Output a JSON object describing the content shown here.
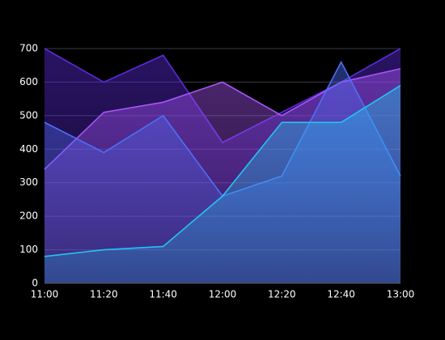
{
  "chart_data": {
    "type": "area",
    "categories": [
      "11:00",
      "11:20",
      "11:40",
      "12:00",
      "12:20",
      "12:40",
      "13:00"
    ],
    "series": [
      {
        "color": "#5b2bdc",
        "values": [
          700,
          600,
          680,
          420,
          510,
          600,
          700
        ]
      },
      {
        "color": "#a855f7",
        "values": [
          340,
          510,
          540,
          600,
          500,
          600,
          640
        ]
      },
      {
        "color": "#4f6ef7",
        "values": [
          480,
          390,
          500,
          260,
          320,
          660,
          320
        ]
      },
      {
        "color": "#22c5f0",
        "values": [
          80,
          100,
          110,
          260,
          480,
          480,
          590
        ]
      }
    ],
    "ylim": [
      0,
      700
    ],
    "yticks": [
      0,
      100,
      200,
      300,
      400,
      500,
      600,
      700
    ],
    "grid": true
  }
}
